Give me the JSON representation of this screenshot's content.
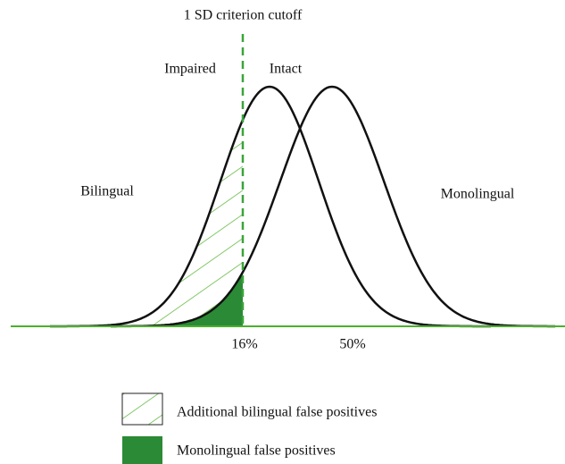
{
  "cutoff_label": "1 SD criterion cutoff",
  "side_labels": {
    "left": "Impaired",
    "right": "Intact"
  },
  "curve_labels": {
    "bilingual": "Bilingual",
    "monolingual": "Monolingual"
  },
  "axis_labels": {
    "cutoff": "16%",
    "mean": "50%"
  },
  "legend": [
    "Additional bilingual false positives",
    "Monolingual false positives"
  ]
}
